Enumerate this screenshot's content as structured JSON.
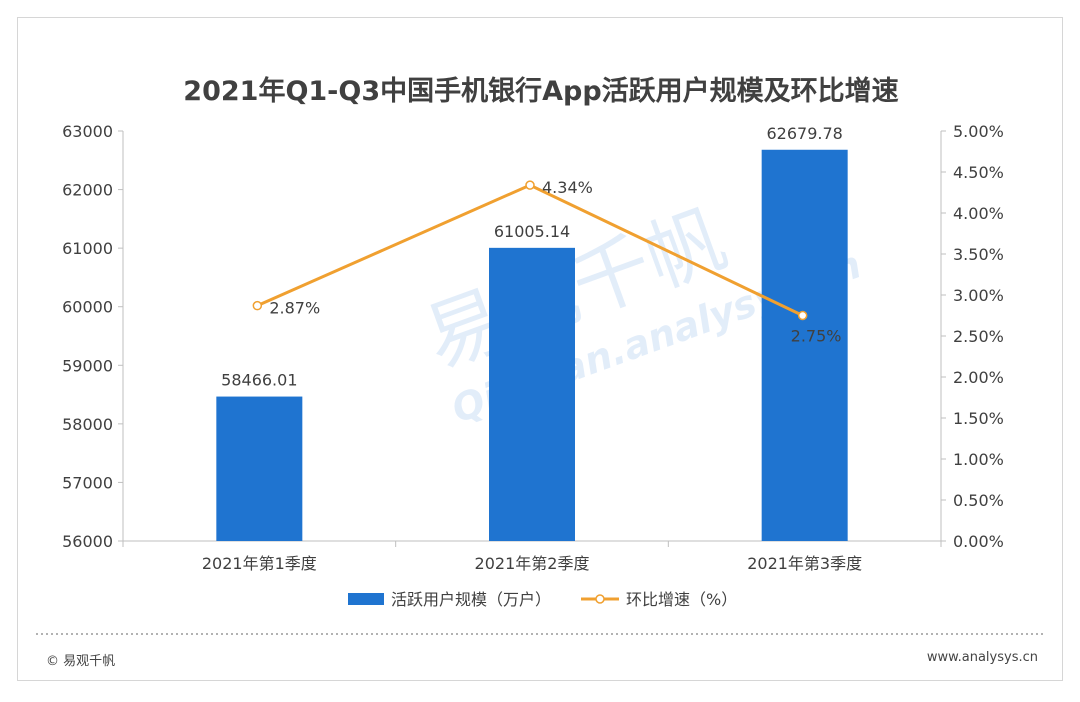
{
  "chart_data": {
    "type": "bar",
    "title": "2021年Q1-Q3中国手机银行App活跃用户规模及环比增速",
    "categories": [
      "2021年第1季度",
      "2021年第2季度",
      "2021年第3季度"
    ],
    "series": [
      {
        "name": "活跃用户规模（万户）",
        "type": "bar",
        "axis": "left",
        "values": [
          58466.01,
          61005.14,
          62679.78
        ],
        "labels": [
          "58466.01",
          "61005.14",
          "62679.78"
        ]
      },
      {
        "name": "环比增速（%）",
        "type": "line",
        "axis": "right",
        "values": [
          2.87,
          4.34,
          2.75
        ],
        "labels": [
          "2.87%",
          "4.34%",
          "2.75%"
        ]
      }
    ],
    "ylim_left": [
      56000,
      63000
    ],
    "ytick_left": [
      "56000",
      "57000",
      "58000",
      "59000",
      "60000",
      "61000",
      "62000",
      "63000"
    ],
    "ylim_right": [
      0,
      5
    ],
    "ytick_right": [
      "0.00%",
      "0.50%",
      "1.00%",
      "1.50%",
      "2.00%",
      "2.50%",
      "3.00%",
      "3.50%",
      "4.00%",
      "4.50%",
      "5.00%"
    ],
    "legend_position": "bottom",
    "grid": false,
    "colors": {
      "bar": "#1f74d0",
      "line": "#f0a030",
      "axis": "#bfbfbf",
      "text": "#404040"
    },
    "watermark": {
      "cn": "易观千帆",
      "en": "Qianfan.analysys.cn"
    }
  },
  "footer": {
    "copyright": "© 易观千帆",
    "website": "www.analysys.cn"
  }
}
